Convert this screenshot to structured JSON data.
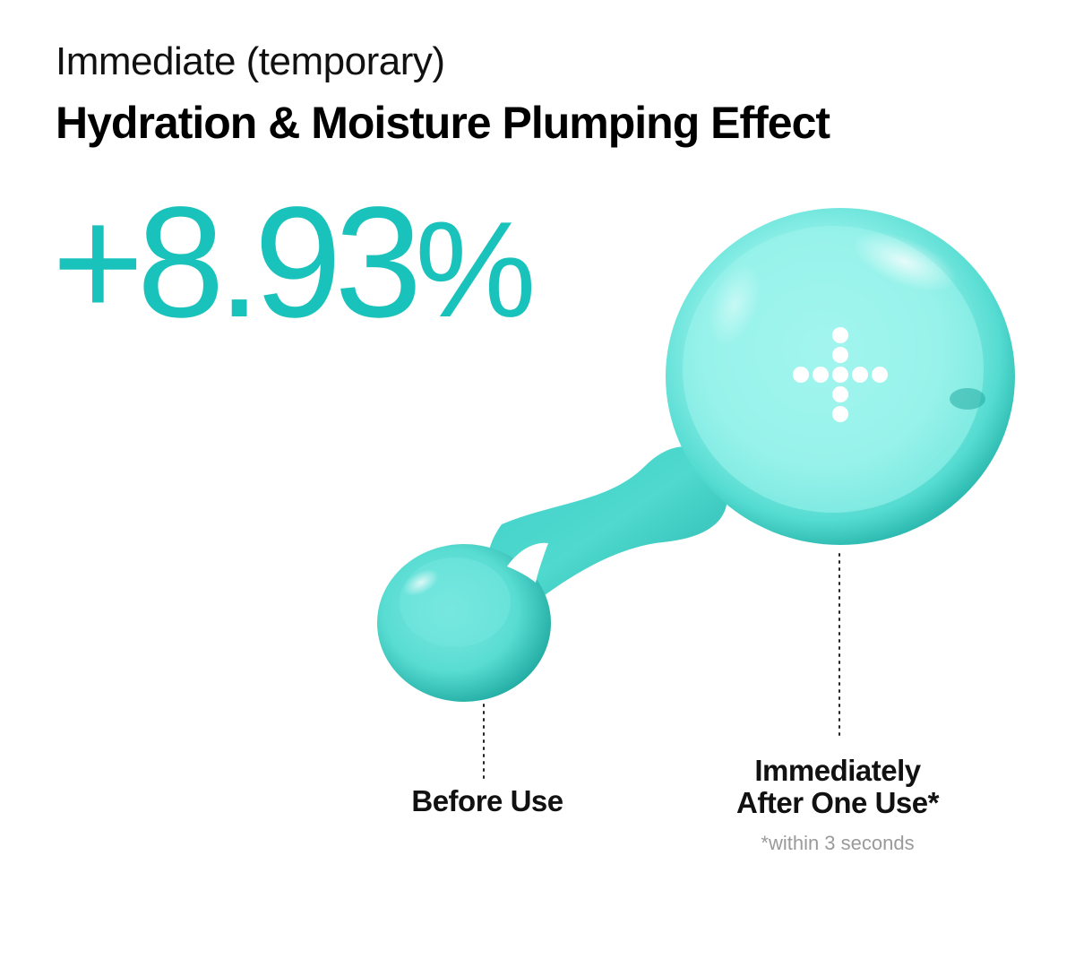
{
  "header": {
    "subtitle": "Immediate (temporary)",
    "title": "Hydration & Moisture Plumping Effect"
  },
  "stat": {
    "value": "+8.93",
    "unit": "%"
  },
  "labels": {
    "before": "Before Use",
    "after_line1": "Immediately",
    "after_line2": "After One Use*",
    "footnote": "*within 3 seconds"
  },
  "colors": {
    "accent": "#19c3bb",
    "droplet_light": "#9cf5ee",
    "droplet_mid": "#4fd9cf",
    "droplet_dark": "#1aa59c",
    "footnote": "#9a9a9a"
  },
  "icons": {
    "plus_symbol": "dotted-plus-icon"
  }
}
